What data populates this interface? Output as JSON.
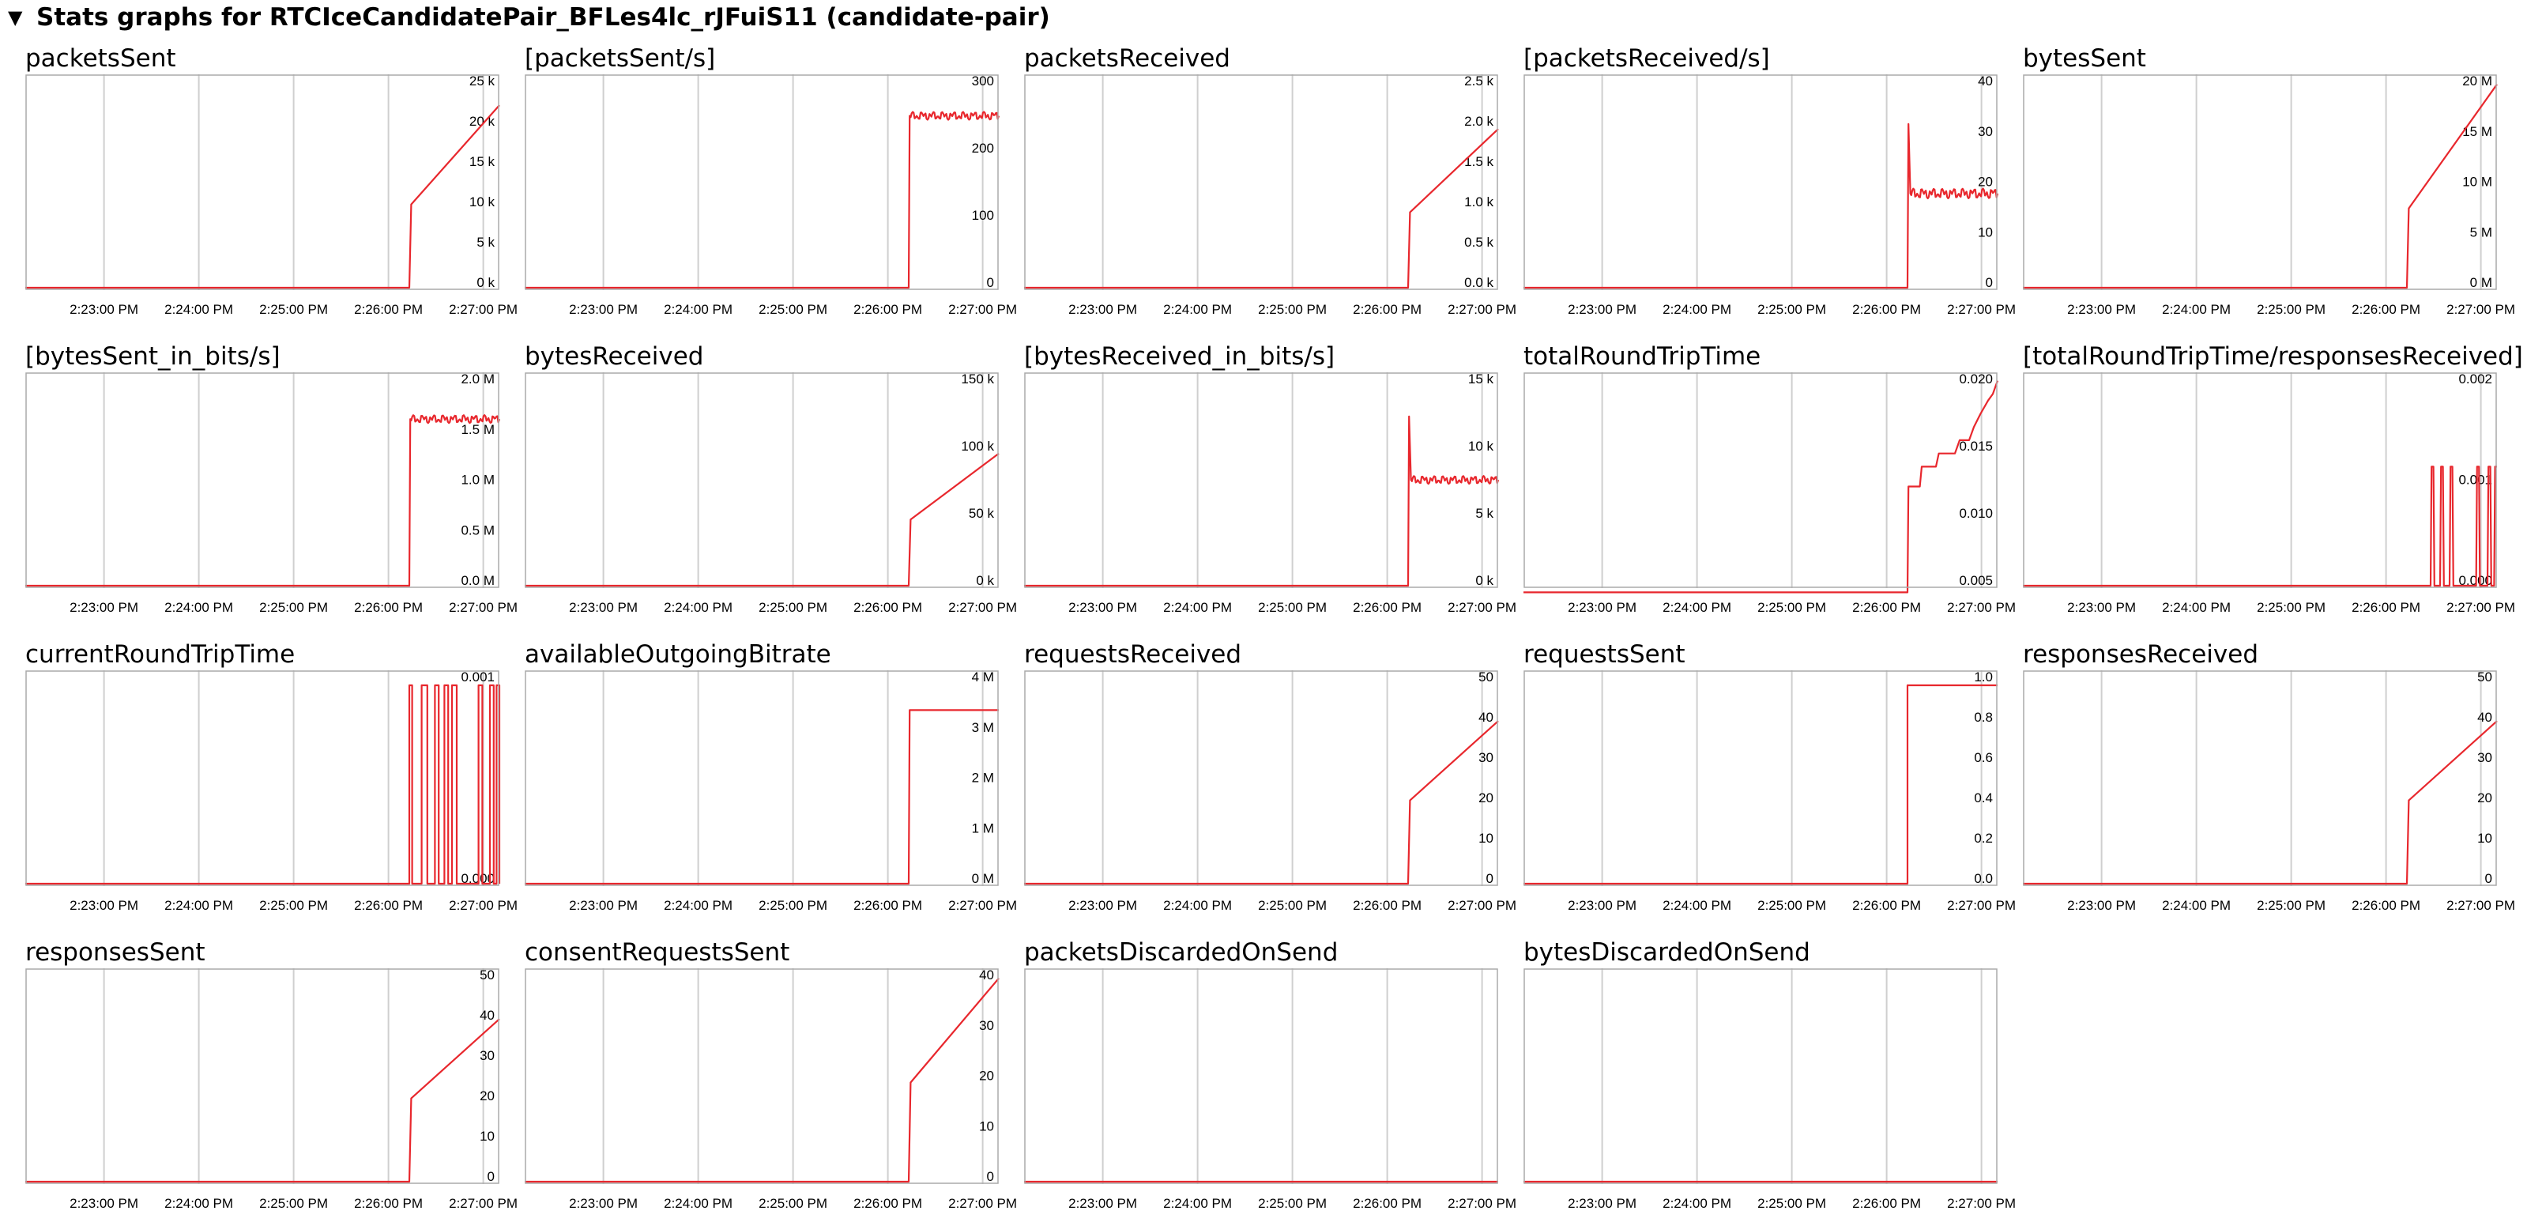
{
  "header": {
    "toggle_icon": "triangle-down-icon",
    "title": "Stats graphs for RTCIceCandidatePair_BFLes4lc_rJFuiS11 (candidate-pair)"
  },
  "colors": {
    "line": "#e8272d",
    "grid": "#cfcfcf",
    "frame": "#aaaaaa",
    "text": "#000000"
  },
  "x_ticks": [
    "2:23:00 PM",
    "2:24:00 PM",
    "2:25:00 PM",
    "2:26:00 PM",
    "2:27:00 PM"
  ],
  "x_range": [
    "2:22:10 PM",
    "2:27:10 PM"
  ],
  "chart_data": [
    {
      "name": "packetsSent",
      "type": "line",
      "ticks": [
        "25 k",
        "20 k",
        "15 k",
        "10 k",
        "5 k",
        "0 k"
      ],
      "ylim": [
        0,
        25000
      ],
      "points": [
        [
          0,
          0
        ],
        [
          4.05,
          0
        ],
        [
          4.07,
          10500
        ],
        [
          5,
          23000
        ]
      ]
    },
    {
      "name": "[packetsSent/s]",
      "type": "line",
      "ticks": [
        "300",
        "200",
        "100",
        "0"
      ],
      "ylim": [
        0,
        300
      ],
      "points": [
        [
          0,
          0
        ],
        [
          4.05,
          0
        ],
        [
          4.06,
          260
        ],
        [
          5,
          260
        ]
      ],
      "noise": 6
    },
    {
      "name": "packetsReceived",
      "type": "line",
      "ticks": [
        "2.5 k",
        "2.0 k",
        "1.5 k",
        "1.0 k",
        "0.5 k",
        "0.0 k"
      ],
      "ylim": [
        0,
        2500
      ],
      "points": [
        [
          0,
          0
        ],
        [
          4.05,
          0
        ],
        [
          4.07,
          950
        ],
        [
          5,
          2000
        ]
      ]
    },
    {
      "name": "[packetsReceived/s]",
      "type": "line",
      "ticks": [
        "40",
        "30",
        "20",
        "10",
        "0"
      ],
      "ylim": [
        0,
        40
      ],
      "points": [
        [
          0,
          0
        ],
        [
          4.05,
          0
        ],
        [
          4.06,
          33
        ],
        [
          4.08,
          19
        ],
        [
          5,
          19
        ]
      ],
      "noise": 1
    },
    {
      "name": "bytesSent",
      "type": "line",
      "ticks": [
        "20 M",
        "15 M",
        "10 M",
        "5 M",
        "0 M"
      ],
      "ylim": [
        0,
        20
      ],
      "points": [
        [
          0,
          0
        ],
        [
          4.05,
          0
        ],
        [
          4.07,
          8
        ],
        [
          5,
          20.5
        ]
      ]
    },
    {
      "name": "[bytesSent_in_bits/s]",
      "type": "line",
      "ticks": [
        "2.0 M",
        "1.5 M",
        "1.0 M",
        "0.5 M",
        "0.0 M"
      ],
      "ylim": [
        0,
        2
      ],
      "points": [
        [
          0,
          0
        ],
        [
          4.05,
          0
        ],
        [
          4.06,
          1.68
        ],
        [
          5,
          1.68
        ]
      ],
      "noise": 0.04
    },
    {
      "name": "bytesReceived",
      "type": "line",
      "ticks": [
        "150 k",
        "100 k",
        "50 k",
        "0 k"
      ],
      "ylim": [
        0,
        150
      ],
      "points": [
        [
          0,
          0
        ],
        [
          4.05,
          0
        ],
        [
          4.07,
          50
        ],
        [
          5,
          100
        ]
      ]
    },
    {
      "name": "[bytesReceived_in_bits/s]",
      "type": "line",
      "ticks": [
        "15 k",
        "10 k",
        "5 k",
        "0 k"
      ],
      "ylim": [
        0,
        15
      ],
      "points": [
        [
          0,
          0
        ],
        [
          4.05,
          0
        ],
        [
          4.06,
          12.8
        ],
        [
          4.08,
          8
        ],
        [
          5,
          8
        ]
      ],
      "noise": 0.3
    },
    {
      "name": "totalRoundTripTime",
      "type": "line",
      "ticks": [
        "0.020",
        "0.015",
        "0.010",
        "0.005"
      ],
      "ylim": [
        0.005,
        0.02
      ],
      "points": [
        [
          0,
          0.0045
        ],
        [
          4.05,
          0.0045
        ],
        [
          4.06,
          0.0125
        ],
        [
          4.18,
          0.0125
        ],
        [
          4.2,
          0.014
        ],
        [
          4.35,
          0.014
        ],
        [
          4.38,
          0.015
        ],
        [
          4.55,
          0.015
        ],
        [
          4.6,
          0.016
        ],
        [
          4.7,
          0.016
        ],
        [
          4.75,
          0.017
        ],
        [
          4.82,
          0.018
        ],
        [
          4.9,
          0.019
        ],
        [
          4.95,
          0.0195
        ],
        [
          5,
          0.0205
        ]
      ]
    },
    {
      "name": "[totalRoundTripTime/responsesReceived]",
      "type": "line",
      "ticks": [
        "0.002",
        "0.001",
        "0.000"
      ],
      "ylim": [
        0,
        0.002
      ],
      "points": [
        [
          0,
          0
        ],
        [
          4.3,
          0
        ],
        [
          4.31,
          0.0012
        ],
        [
          4.33,
          0.0012
        ],
        [
          4.34,
          0
        ],
        [
          4.4,
          0
        ],
        [
          4.41,
          0.0012
        ],
        [
          4.43,
          0.0012
        ],
        [
          4.44,
          0
        ],
        [
          4.5,
          0
        ],
        [
          4.51,
          0.0012
        ],
        [
          4.53,
          0.0012
        ],
        [
          4.54,
          0
        ],
        [
          4.78,
          0
        ],
        [
          4.79,
          0.0012
        ],
        [
          4.81,
          0.0012
        ],
        [
          4.82,
          0
        ],
        [
          4.9,
          0
        ],
        [
          4.91,
          0.0012
        ],
        [
          4.93,
          0.0012
        ],
        [
          4.94,
          0
        ],
        [
          4.97,
          0
        ],
        [
          4.98,
          0.0012
        ],
        [
          5,
          0.0012
        ]
      ]
    },
    {
      "name": "currentRoundTripTime",
      "type": "line",
      "ticks": [
        "0.001",
        "0.000"
      ],
      "ylim": [
        0,
        0.001
      ],
      "points": [
        [
          0,
          0
        ],
        [
          4.05,
          0
        ],
        [
          4.05,
          0.001
        ],
        [
          4.08,
          0.001
        ],
        [
          4.08,
          0
        ],
        [
          4.18,
          0
        ],
        [
          4.18,
          0.001
        ],
        [
          4.24,
          0.001
        ],
        [
          4.24,
          0
        ],
        [
          4.32,
          0
        ],
        [
          4.32,
          0.001
        ],
        [
          4.36,
          0.001
        ],
        [
          4.36,
          0
        ],
        [
          4.42,
          0
        ],
        [
          4.42,
          0.001
        ],
        [
          4.46,
          0.001
        ],
        [
          4.46,
          0
        ],
        [
          4.5,
          0
        ],
        [
          4.5,
          0.001
        ],
        [
          4.55,
          0.001
        ],
        [
          4.55,
          0
        ],
        [
          4.78,
          0
        ],
        [
          4.78,
          0.001
        ],
        [
          4.82,
          0.001
        ],
        [
          4.82,
          0
        ],
        [
          4.9,
          0
        ],
        [
          4.9,
          0.001
        ],
        [
          4.94,
          0.001
        ],
        [
          4.94,
          0
        ],
        [
          4.97,
          0
        ],
        [
          4.97,
          0.001
        ],
        [
          5,
          0.001
        ],
        [
          5,
          0
        ]
      ]
    },
    {
      "name": "availableOutgoingBitrate",
      "type": "line",
      "ticks": [
        "4 M",
        "3 M",
        "2 M",
        "1 M",
        "0 M"
      ],
      "ylim": [
        0,
        4
      ],
      "points": [
        [
          0,
          0
        ],
        [
          4.05,
          0
        ],
        [
          4.06,
          3.5
        ],
        [
          5,
          3.5
        ]
      ]
    },
    {
      "name": "requestsReceived",
      "type": "line",
      "ticks": [
        "50",
        "40",
        "30",
        "20",
        "10",
        "0"
      ],
      "ylim": [
        0,
        50
      ],
      "points": [
        [
          0,
          0
        ],
        [
          4.05,
          0
        ],
        [
          4.07,
          21
        ],
        [
          5,
          41
        ]
      ]
    },
    {
      "name": "requestsSent",
      "type": "line",
      "ticks": [
        "1.0",
        "0.8",
        "0.6",
        "0.4",
        "0.2",
        "0.0"
      ],
      "ylim": [
        0,
        1
      ],
      "points": [
        [
          0,
          0
        ],
        [
          4.05,
          0
        ],
        [
          4.05,
          1
        ],
        [
          5,
          1
        ]
      ]
    },
    {
      "name": "responsesReceived",
      "type": "line",
      "ticks": [
        "50",
        "40",
        "30",
        "20",
        "10",
        "0"
      ],
      "ylim": [
        0,
        50
      ],
      "points": [
        [
          0,
          0
        ],
        [
          4.05,
          0
        ],
        [
          4.07,
          21
        ],
        [
          5,
          41
        ]
      ]
    },
    {
      "name": "responsesSent",
      "type": "line",
      "ticks": [
        "50",
        "40",
        "30",
        "20",
        "10",
        "0"
      ],
      "ylim": [
        0,
        50
      ],
      "points": [
        [
          0,
          0
        ],
        [
          4.05,
          0
        ],
        [
          4.07,
          21
        ],
        [
          5,
          41
        ]
      ]
    },
    {
      "name": "consentRequestsSent",
      "type": "line",
      "ticks": [
        "40",
        "30",
        "20",
        "10",
        "0"
      ],
      "ylim": [
        0,
        40
      ],
      "points": [
        [
          0,
          0
        ],
        [
          4.05,
          0
        ],
        [
          4.07,
          20
        ],
        [
          5,
          41
        ]
      ]
    },
    {
      "name": "packetsDiscardedOnSend",
      "type": "line",
      "ticks": [],
      "ylim": [
        0,
        1
      ],
      "points": [
        [
          0,
          0
        ],
        [
          5,
          0
        ]
      ]
    },
    {
      "name": "bytesDiscardedOnSend",
      "type": "line",
      "ticks": [],
      "ylim": [
        0,
        1
      ],
      "points": [
        [
          0,
          0
        ],
        [
          5,
          0
        ]
      ]
    }
  ]
}
